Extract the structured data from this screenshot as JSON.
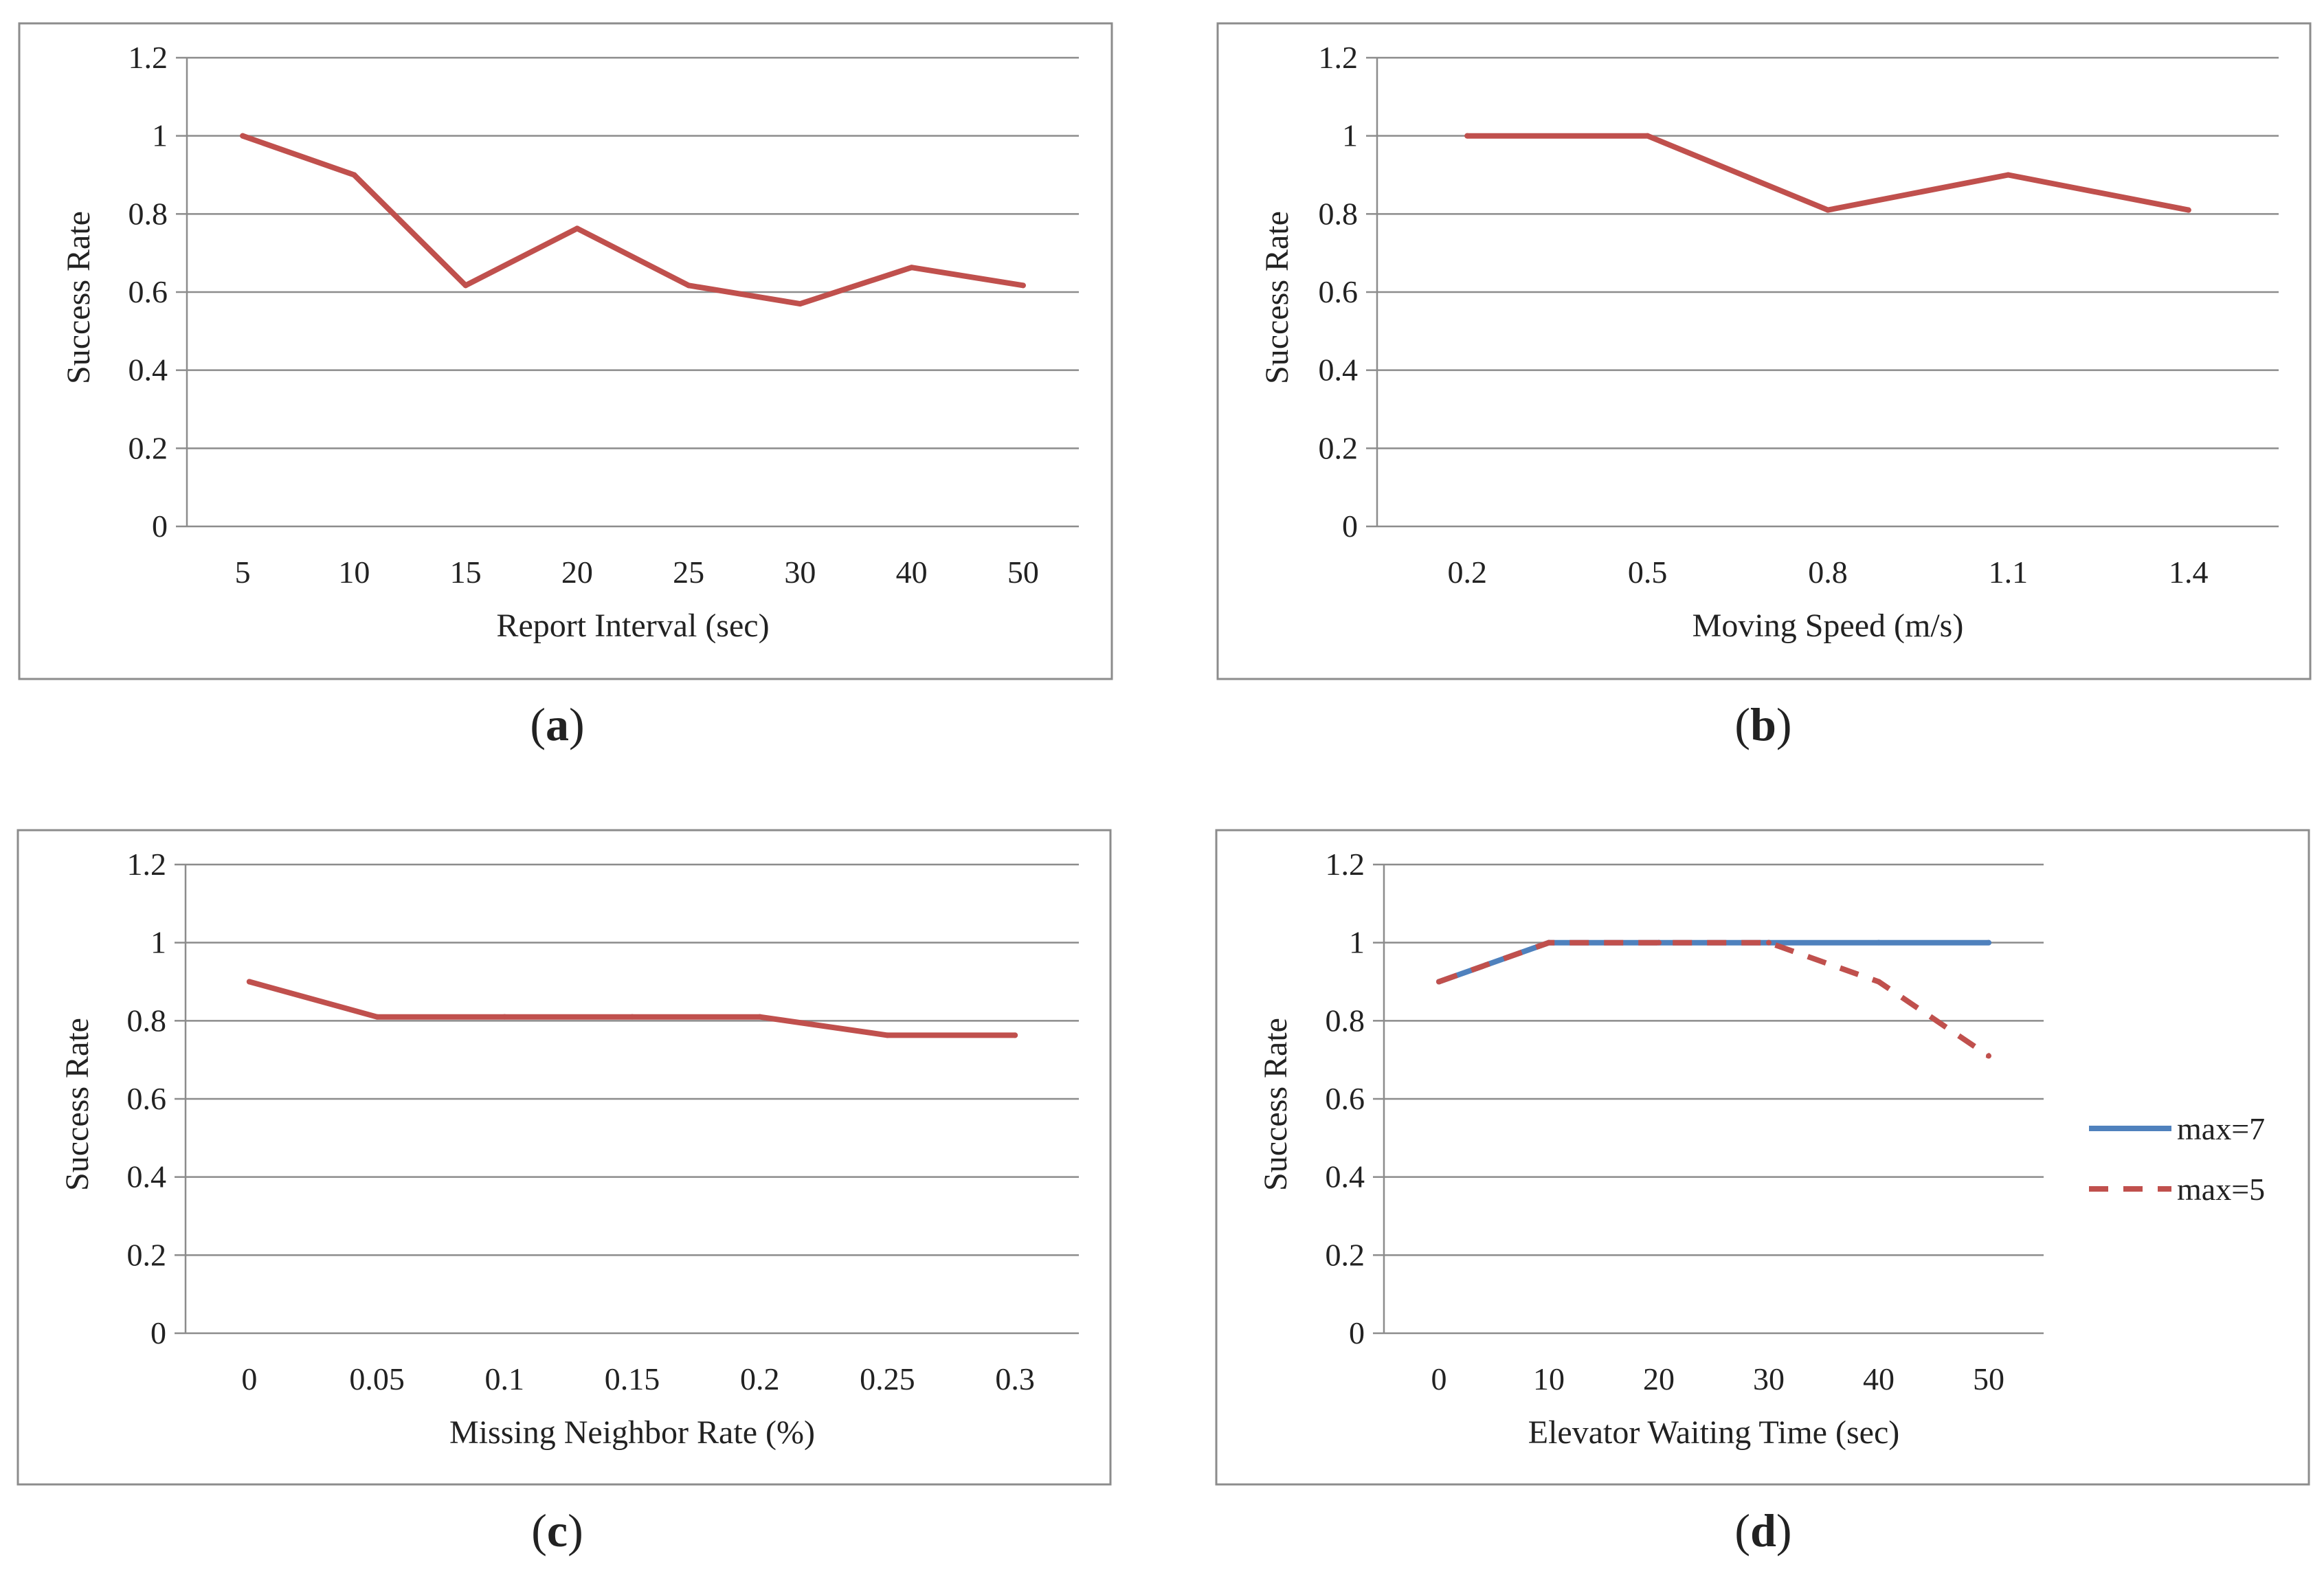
{
  "chart_data": [
    {
      "type": "line",
      "caption": "(a)",
      "caption_letter": "a",
      "xlabel": "Report Interval (sec)",
      "ylabel": "Success Rate",
      "ylim": [
        0,
        1.2
      ],
      "yticks": [
        "0",
        "0.2",
        "0.4",
        "0.6",
        "0.8",
        "1",
        "1.2"
      ],
      "categories": [
        "5",
        "10",
        "15",
        "20",
        "25",
        "30",
        "40",
        "50"
      ],
      "series": [
        {
          "name": "",
          "color": "#c0504d",
          "dash": false,
          "values": [
            1.0,
            0.9,
            0.617,
            0.763,
            0.617,
            0.57,
            0.663,
            0.617
          ]
        }
      ]
    },
    {
      "type": "line",
      "caption": "(b)",
      "caption_letter": "b",
      "xlabel": "Moving Speed (m/s)",
      "ylabel": "Success Rate",
      "ylim": [
        0,
        1.2
      ],
      "yticks": [
        "0",
        "0.2",
        "0.4",
        "0.6",
        "0.8",
        "1",
        "1.2"
      ],
      "categories": [
        "0.2",
        "0.5",
        "0.8",
        "1.1",
        "1.4"
      ],
      "series": [
        {
          "name": "",
          "color": "#c0504d",
          "dash": false,
          "values": [
            1.0,
            1.0,
            0.81,
            0.9,
            0.81
          ]
        }
      ]
    },
    {
      "type": "line",
      "caption": "(c)",
      "caption_letter": "c",
      "xlabel": "Missing Neighbor Rate (%)",
      "ylabel": "Success Rate",
      "ylim": [
        0,
        1.2
      ],
      "yticks": [
        "0",
        "0.2",
        "0.4",
        "0.6",
        "0.8",
        "1",
        "1.2"
      ],
      "categories": [
        "0",
        "0.05",
        "0.1",
        "0.15",
        "0.2",
        "0.25",
        "0.3"
      ],
      "series": [
        {
          "name": "",
          "color": "#c0504d",
          "dash": false,
          "values": [
            0.9,
            0.81,
            0.81,
            0.81,
            0.81,
            0.763,
            0.763
          ]
        }
      ]
    },
    {
      "type": "line",
      "caption": "(d)",
      "caption_letter": "d",
      "xlabel": "Elevator Waiting Time (sec)",
      "ylabel": "Success Rate",
      "ylim": [
        0,
        1.2
      ],
      "yticks": [
        "0",
        "0.2",
        "0.4",
        "0.6",
        "0.8",
        "1",
        "1.2"
      ],
      "categories": [
        "0",
        "10",
        "20",
        "30",
        "40",
        "50"
      ],
      "legend_position": "right",
      "series": [
        {
          "name": "max=7",
          "color": "#4f81bd",
          "dash": false,
          "values": [
            0.9,
            1.0,
            1.0,
            1.0,
            1.0,
            1.0
          ]
        },
        {
          "name": "max=5",
          "color": "#c0504d",
          "dash": true,
          "values": [
            0.9,
            1.0,
            1.0,
            1.0,
            0.9,
            0.71
          ]
        }
      ]
    }
  ]
}
